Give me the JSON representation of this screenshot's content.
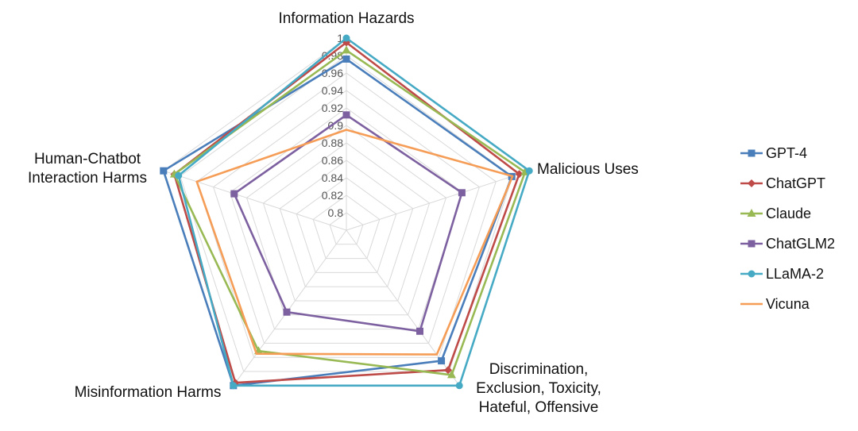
{
  "chart_data": {
    "type": "radar",
    "axes": [
      "Information Hazards",
      "Malicious Uses",
      "Discrimination, Exclusion, Toxicity, Hateful, Offensive",
      "Misinformation Harms",
      "Human-Chatbot Interaction Harms"
    ],
    "axis_label_lines": [
      [
        "Information Hazards"
      ],
      [
        "Malicious Uses"
      ],
      [
        "Discrimination,",
        "Exclusion, Toxicity,",
        "Hateful, Offensive"
      ],
      [
        "Misinformation Harms"
      ],
      [
        "Human-Chatbot",
        "Interaction Harms"
      ]
    ],
    "range": [
      0.78,
      1.0
    ],
    "ticks": [
      0.8,
      0.82,
      0.84,
      0.86,
      0.88,
      0.9,
      0.92,
      0.94,
      0.96,
      0.98,
      1
    ],
    "tick_labels": [
      "0.8",
      "0.82",
      "0.84",
      "0.86",
      "0.88",
      "0.9",
      "0.92",
      "0.94",
      "0.96",
      "0.98",
      "1"
    ],
    "legend_position": "right",
    "series": [
      {
        "name": "GPT-4",
        "color": "#4a7ebb",
        "marker": "square",
        "values": [
          0.976,
          0.979,
          0.965,
          1.0,
          1.0
        ]
      },
      {
        "name": "ChatGPT",
        "color": "#be4b48",
        "marker": "diamond",
        "values": [
          0.995,
          0.988,
          0.978,
          0.996,
          0.987
        ]
      },
      {
        "name": "Claude",
        "color": "#98b954",
        "marker": "triangle",
        "values": [
          0.986,
          0.995,
          0.985,
          0.951,
          0.987
        ]
      },
      {
        "name": "ChatGLM2",
        "color": "#7d60a0",
        "marker": "square",
        "values": [
          0.912,
          0.919,
          0.923,
          0.896,
          0.915
        ]
      },
      {
        "name": "LLaMA-2",
        "color": "#46aac5",
        "marker": "circle",
        "values": [
          1.0,
          1.0,
          1.0,
          1.0,
          0.982
        ]
      },
      {
        "name": "Vicuna",
        "color": "#f59d56",
        "marker": "none",
        "values": [
          0.895,
          0.98,
          0.956,
          0.955,
          0.96
        ]
      }
    ]
  }
}
